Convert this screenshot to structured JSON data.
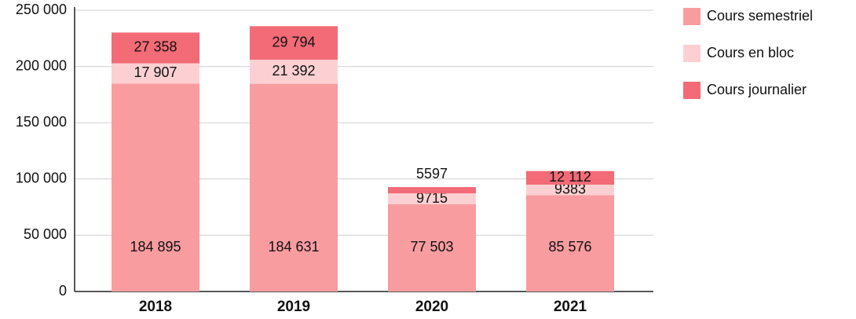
{
  "chart_data": {
    "type": "stacked_bar",
    "categories": [
      "2018",
      "2019",
      "2020",
      "2021"
    ],
    "series": [
      {
        "name": "Cours semestriel",
        "color": "#f89ca0",
        "values": [
          184895,
          184631,
          77503,
          85576
        ],
        "value_labels": [
          "184 895",
          "184 631",
          "77 503",
          "85 576"
        ]
      },
      {
        "name": "Cours en bloc",
        "color": "#fcd0d2",
        "values": [
          17907,
          21392,
          9715,
          9383
        ],
        "value_labels": [
          "17 907",
          "21 392",
          "9715",
          "9383"
        ]
      },
      {
        "name": "Cours journalier",
        "color": "#f26b77",
        "values": [
          27358,
          29794,
          5597,
          12112
        ],
        "value_labels": [
          "27 358",
          "29 794",
          "5597",
          "12 112"
        ]
      }
    ],
    "ylim": [
      0,
      250000
    ],
    "yticks": [
      0,
      {
        "value": 50000,
        "label": "50 000"
      },
      {
        "value": 100000,
        "label": "100 000"
      },
      {
        "value": 150000,
        "label": "150 000"
      },
      {
        "value": 200000,
        "label": "200 000"
      },
      {
        "value": 250000,
        "label": "250 000"
      }
    ],
    "grid": true
  }
}
